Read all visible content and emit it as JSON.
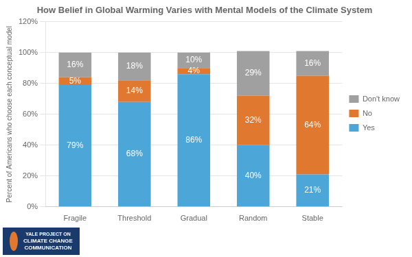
{
  "chart_data": {
    "type": "bar",
    "stacked": true,
    "title": "How Belief in Global Warming Varies with Mental Models of the Climate System",
    "ylabel": "Percent of Americans who choose each conceptual model",
    "categories": [
      "Fragile",
      "Threshold",
      "Gradual",
      "Random",
      "Stable"
    ],
    "series": [
      {
        "name": "Yes",
        "color": "#4da6d8",
        "values": [
          79,
          68,
          86,
          40,
          21
        ],
        "value_labels": [
          "79%",
          "68%",
          "86%",
          "40%",
          "21%"
        ]
      },
      {
        "name": "No",
        "color": "#e07830",
        "values": [
          5,
          14,
          4,
          32,
          64
        ],
        "value_labels": [
          "5%",
          "14%",
          "4%",
          "32%",
          "64%"
        ]
      },
      {
        "name": "Don't know",
        "color": "#a0a0a0",
        "values": [
          16,
          18,
          10,
          29,
          16
        ],
        "value_labels": [
          "16%",
          "18%",
          "10%",
          "29%",
          "16%"
        ]
      }
    ],
    "ylim": [
      0,
      120
    ],
    "yticks": [
      {
        "value": 0,
        "label": "0%"
      },
      {
        "value": 20,
        "label": "20%"
      },
      {
        "value": 40,
        "label": "40%"
      },
      {
        "value": 60,
        "label": "60%"
      },
      {
        "value": 80,
        "label": "80%"
      },
      {
        "value": 100,
        "label": "100%"
      },
      {
        "value": 120,
        "label": "120%"
      }
    ],
    "grid": true,
    "legend": "right",
    "data_labels": true,
    "annotations": [
      "YALE PROJECT ON",
      "CLIMATE CHANGE",
      "COMMUNICATION"
    ]
  }
}
